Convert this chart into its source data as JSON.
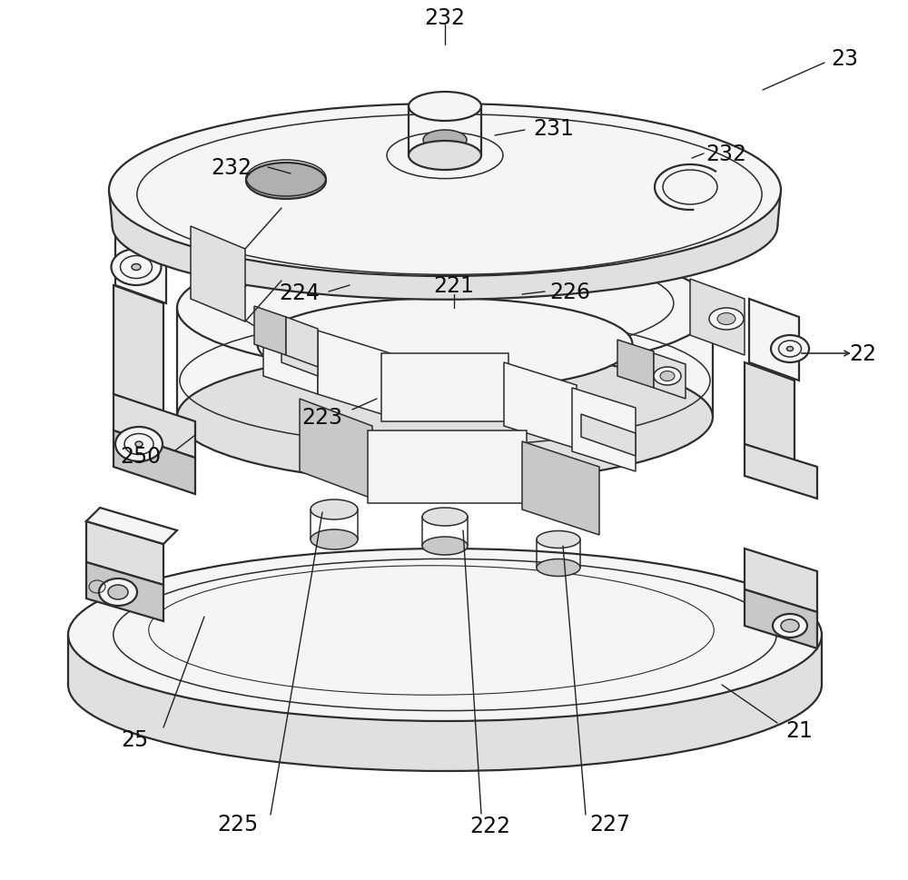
{
  "bg": "#ffffff",
  "lc": "#2d2d2d",
  "lc2": "#444444",
  "fill_top": "#f5f5f5",
  "fill_side": "#e0e0e0",
  "fill_dark": "#c8c8c8",
  "fill_darker": "#b0b0b0",
  "fill_white": "#fafafa",
  "lw": 1.6,
  "lw2": 1.1,
  "lw3": 0.8,
  "figsize": [
    10.0,
    9.7
  ],
  "label_fs": 17
}
